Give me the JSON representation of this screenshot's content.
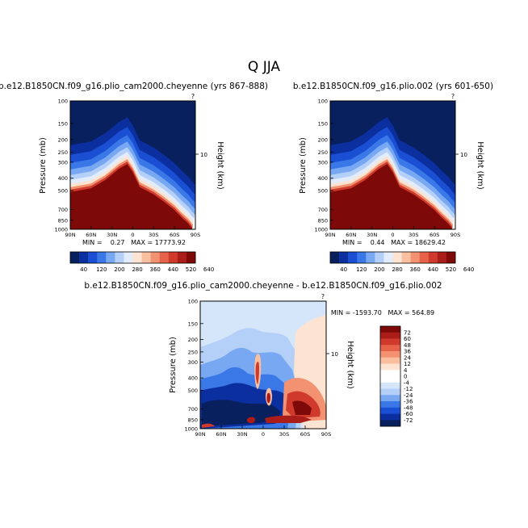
{
  "page_title": "Q JJA",
  "chart_data": [
    {
      "type": "heatmap",
      "title": "b.e12.B1850CN.f09_g16.plio_cam2000.cheyenne (yrs 867-888)",
      "ylabel": "Pressure (mb)",
      "ylabel_right": "Height (km)",
      "y_ticks": [
        "100",
        "150",
        "200",
        "250",
        "300",
        "400",
        "500",
        "700",
        "850",
        "1000"
      ],
      "y_right_ticks": [
        "10"
      ],
      "corner_label": "?",
      "x_ticks": [
        "90N",
        "60N",
        "30N",
        "0",
        "30S",
        "60S",
        "90S"
      ],
      "stats": "MIN =    0.27   MAX = 17773.92",
      "ylim": [
        100,
        1000
      ],
      "xlim": [
        90,
        -90
      ],
      "colorbar": {
        "labels": [
          "40",
          "120",
          "200",
          "280",
          "360",
          "440",
          "520",
          "640"
        ],
        "colors": [
          "#08205e",
          "#0c2fa0",
          "#1a4fd3",
          "#3a78e8",
          "#78a8f2",
          "#b4cff8",
          "#e2ecfb",
          "#fde4d2",
          "#f9bf9f",
          "#f29271",
          "#e6634a",
          "#cf3a2c",
          "#ab1d18",
          "#7d0a08"
        ]
      },
      "boundary": {
        "x": [
          90,
          60,
          40,
          20,
          8,
          0,
          -10,
          -30,
          -45,
          -60,
          -70,
          -80,
          -85,
          -90
        ],
        "y": [
          470,
          440,
          380,
          310,
          285,
          330,
          430,
          490,
          560,
          650,
          740,
          830,
          900,
          960
        ]
      }
    },
    {
      "type": "heatmap",
      "title": "b.e12.B1850CN.f09_g16.plio.002 (yrs 601-650)",
      "ylabel": "Pressure (mb)",
      "ylabel_right": "Height (km)",
      "y_ticks": [
        "100",
        "150",
        "200",
        "250",
        "300",
        "400",
        "500",
        "700",
        "850",
        "1000"
      ],
      "y_right_ticks": [
        "10"
      ],
      "corner_label": "?",
      "x_ticks": [
        "90N",
        "60N",
        "30N",
        "0",
        "30S",
        "60S",
        "90S"
      ],
      "stats": "MIN =    0.44   MAX = 18629.42",
      "ylim": [
        100,
        1000
      ],
      "xlim": [
        90,
        -90
      ],
      "colorbar": {
        "labels": [
          "40",
          "120",
          "200",
          "280",
          "360",
          "440",
          "520",
          "640"
        ],
        "colors": [
          "#08205e",
          "#0c2fa0",
          "#1a4fd3",
          "#3a78e8",
          "#78a8f2",
          "#b4cff8",
          "#e2ecfb",
          "#fde4d2",
          "#f9bf9f",
          "#f29271",
          "#e6634a",
          "#cf3a2c",
          "#ab1d18",
          "#7d0a08"
        ]
      },
      "boundary": {
        "x": [
          90,
          60,
          40,
          20,
          8,
          0,
          -10,
          -30,
          -45,
          -60,
          -70,
          -80,
          -85,
          -90
        ],
        "y": [
          470,
          440,
          380,
          310,
          285,
          330,
          430,
          490,
          560,
          650,
          740,
          830,
          900,
          960
        ]
      }
    },
    {
      "type": "heatmap",
      "title": "b.e12.B1850CN.f09_g16.plio_cam2000.cheyenne - b.e12.B1850CN.f09_g16.plio.002",
      "ylabel": "Pressure (mb)",
      "ylabel_right": "Height (km)",
      "y_ticks": [
        "100",
        "150",
        "200",
        "250",
        "300",
        "400",
        "500",
        "700",
        "850",
        "1000"
      ],
      "y_right_ticks": [
        "10"
      ],
      "corner_label": "?",
      "x_ticks": [
        "90N",
        "60N",
        "30N",
        "0",
        "30S",
        "60S",
        "90S"
      ],
      "stats": "MIN = -1593.70   MAX = 564.89",
      "ylim": [
        100,
        1000
      ],
      "xlim": [
        90,
        -90
      ],
      "colorbar": {
        "labels": [
          "72",
          "60",
          "48",
          "36",
          "24",
          "12",
          "4",
          "0",
          "-4",
          "-12",
          "-24",
          "-36",
          "-48",
          "-60",
          "-72"
        ],
        "colors": [
          "#7d0a08",
          "#ab1d18",
          "#cf3a2c",
          "#e6634a",
          "#f29271",
          "#f9bf9f",
          "#fde4d2",
          "#ffffff",
          "#ffffff",
          "#d6e6fa",
          "#b4cff8",
          "#78a8f2",
          "#3a78e8",
          "#1a4fd3",
          "#0c2fa0",
          "#08205e"
        ]
      }
    }
  ]
}
